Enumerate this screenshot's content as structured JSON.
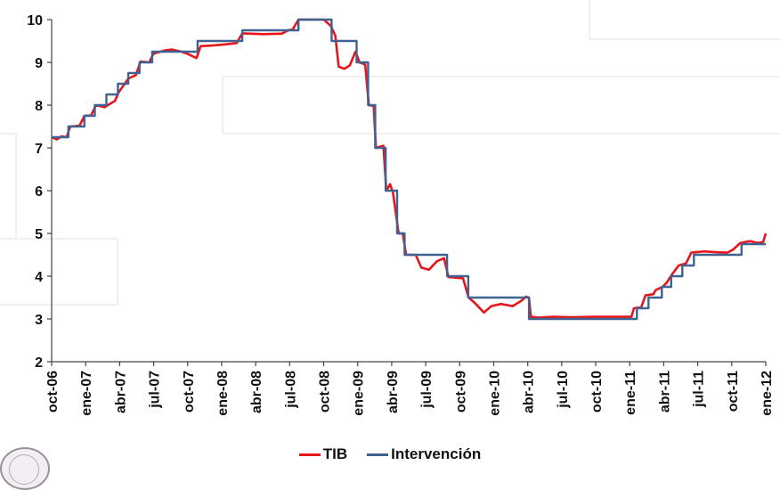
{
  "chart_data": {
    "type": "line",
    "title": "",
    "xlabel": "",
    "ylabel": "",
    "ylim": [
      2,
      10
    ],
    "yticks": [
      "2",
      "3",
      "4",
      "5",
      "6",
      "7",
      "8",
      "9",
      "10"
    ],
    "x_range": [
      "2006-10-01",
      "2012-01-01"
    ],
    "xticks": [
      "oct-06",
      "ene-07",
      "abr-07",
      "jul-07",
      "oct-07",
      "ene-08",
      "abr-08",
      "jul-08",
      "oct-08",
      "ene-09",
      "abr-09",
      "jul-09",
      "oct-09",
      "ene-10",
      "abr-10",
      "jul-10",
      "oct-10",
      "ene-11",
      "abr-11",
      "jul-11",
      "oct-11",
      "ene-12"
    ],
    "grid": false,
    "legend_position": "bottom",
    "series": [
      {
        "name": "TIB",
        "color": "#e8141b",
        "points": [
          [
            "2006-10-01",
            7.25
          ],
          [
            "2006-10-15",
            7.2
          ],
          [
            "2006-10-28",
            7.27
          ],
          [
            "2006-11-10",
            7.25
          ],
          [
            "2006-11-20",
            7.5
          ],
          [
            "2006-12-15",
            7.52
          ],
          [
            "2006-12-28",
            7.75
          ],
          [
            "2007-01-15",
            7.76
          ],
          [
            "2007-01-28",
            8.0
          ],
          [
            "2007-02-20",
            7.95
          ],
          [
            "2007-03-05",
            8.02
          ],
          [
            "2007-03-20",
            8.1
          ],
          [
            "2007-03-30",
            8.3
          ],
          [
            "2007-04-25",
            8.62
          ],
          [
            "2007-05-15",
            8.7
          ],
          [
            "2007-05-28",
            9.02
          ],
          [
            "2007-06-20",
            9.0
          ],
          [
            "2007-07-01",
            9.2
          ],
          [
            "2007-08-01",
            9.28
          ],
          [
            "2007-08-20",
            9.3
          ],
          [
            "2007-09-15",
            9.25
          ],
          [
            "2007-10-01",
            9.2
          ],
          [
            "2007-10-25",
            9.1
          ],
          [
            "2007-11-05",
            9.38
          ],
          [
            "2007-12-15",
            9.4
          ],
          [
            "2008-01-10",
            9.42
          ],
          [
            "2008-02-10",
            9.45
          ],
          [
            "2008-02-25",
            9.68
          ],
          [
            "2008-04-20",
            9.66
          ],
          [
            "2008-06-10",
            9.67
          ],
          [
            "2008-06-28",
            9.75
          ],
          [
            "2008-07-10",
            9.78
          ],
          [
            "2008-07-25",
            10.0
          ],
          [
            "2008-09-05",
            10.0
          ],
          [
            "2008-10-01",
            10.0
          ],
          [
            "2008-10-20",
            9.85
          ],
          [
            "2008-11-01",
            9.62
          ],
          [
            "2008-11-10",
            8.9
          ],
          [
            "2008-11-25",
            8.85
          ],
          [
            "2008-12-10",
            8.93
          ],
          [
            "2008-12-25",
            9.25
          ],
          [
            "2009-01-05",
            9.0
          ],
          [
            "2009-01-20",
            8.95
          ],
          [
            "2009-01-30",
            8.0
          ],
          [
            "2009-02-12",
            7.98
          ],
          [
            "2009-02-18",
            7.0
          ],
          [
            "2009-03-10",
            7.05
          ],
          [
            "2009-03-18",
            6.0
          ],
          [
            "2009-03-28",
            6.15
          ],
          [
            "2009-04-05",
            5.95
          ],
          [
            "2009-04-20",
            5.0
          ],
          [
            "2009-05-01",
            5.0
          ],
          [
            "2009-05-10",
            4.5
          ],
          [
            "2009-06-05",
            4.5
          ],
          [
            "2009-06-20",
            4.2
          ],
          [
            "2009-07-10",
            4.15
          ],
          [
            "2009-08-01",
            4.35
          ],
          [
            "2009-08-20",
            4.42
          ],
          [
            "2009-09-01",
            3.98
          ],
          [
            "2009-10-10",
            3.95
          ],
          [
            "2009-10-25",
            3.5
          ],
          [
            "2009-11-10",
            3.38
          ],
          [
            "2009-12-05",
            3.15
          ],
          [
            "2009-12-25",
            3.3
          ],
          [
            "2010-01-20",
            3.35
          ],
          [
            "2010-02-20",
            3.3
          ],
          [
            "2010-03-15",
            3.42
          ],
          [
            "2010-03-28",
            3.52
          ],
          [
            "2010-04-05",
            3.5
          ],
          [
            "2010-04-10",
            3.05
          ],
          [
            "2010-05-01",
            3.03
          ],
          [
            "2010-06-10",
            3.05
          ],
          [
            "2010-08-01",
            3.04
          ],
          [
            "2010-10-01",
            3.05
          ],
          [
            "2010-12-01",
            3.05
          ],
          [
            "2011-01-05",
            3.05
          ],
          [
            "2011-01-12",
            3.25
          ],
          [
            "2011-02-01",
            3.28
          ],
          [
            "2011-02-12",
            3.55
          ],
          [
            "2011-03-05",
            3.58
          ],
          [
            "2011-03-12",
            3.68
          ],
          [
            "2011-03-30",
            3.75
          ],
          [
            "2011-04-10",
            3.85
          ],
          [
            "2011-04-25",
            4.05
          ],
          [
            "2011-05-12",
            4.25
          ],
          [
            "2011-06-01",
            4.3
          ],
          [
            "2011-06-15",
            4.55
          ],
          [
            "2011-07-20",
            4.58
          ],
          [
            "2011-08-20",
            4.56
          ],
          [
            "2011-09-20",
            4.55
          ],
          [
            "2011-10-05",
            4.62
          ],
          [
            "2011-10-25",
            4.78
          ],
          [
            "2011-11-20",
            4.82
          ],
          [
            "2011-12-10",
            4.78
          ],
          [
            "2011-12-25",
            4.8
          ],
          [
            "2012-01-01",
            5.0
          ]
        ]
      },
      {
        "name": "Intervención",
        "color": "#3e6392",
        "points": [
          [
            "2006-10-01",
            7.25
          ],
          [
            "2006-11-15",
            7.25
          ],
          [
            "2006-11-15",
            7.5
          ],
          [
            "2006-12-28",
            7.5
          ],
          [
            "2006-12-28",
            7.75
          ],
          [
            "2007-01-25",
            7.75
          ],
          [
            "2007-01-25",
            8.0
          ],
          [
            "2007-02-25",
            8.0
          ],
          [
            "2007-02-25",
            8.25
          ],
          [
            "2007-03-28",
            8.25
          ],
          [
            "2007-03-28",
            8.5
          ],
          [
            "2007-04-25",
            8.5
          ],
          [
            "2007-04-25",
            8.75
          ],
          [
            "2007-05-25",
            8.75
          ],
          [
            "2007-05-25",
            9.0
          ],
          [
            "2007-06-28",
            9.0
          ],
          [
            "2007-06-28",
            9.25
          ],
          [
            "2007-10-28",
            9.25
          ],
          [
            "2007-10-28",
            9.5
          ],
          [
            "2008-02-25",
            9.5
          ],
          [
            "2008-02-25",
            9.75
          ],
          [
            "2008-07-25",
            9.75
          ],
          [
            "2008-07-25",
            10.0
          ],
          [
            "2008-10-22",
            10.0
          ],
          [
            "2008-10-22",
            9.5
          ],
          [
            "2008-12-28",
            9.5
          ],
          [
            "2008-12-28",
            9.0
          ],
          [
            "2009-01-28",
            9.0
          ],
          [
            "2009-01-28",
            8.0
          ],
          [
            "2009-02-16",
            8.0
          ],
          [
            "2009-02-16",
            7.0
          ],
          [
            "2009-03-16",
            7.0
          ],
          [
            "2009-03-16",
            6.0
          ],
          [
            "2009-04-16",
            6.0
          ],
          [
            "2009-04-16",
            5.0
          ],
          [
            "2009-05-06",
            5.0
          ],
          [
            "2009-05-06",
            4.5
          ],
          [
            "2009-08-28",
            4.5
          ],
          [
            "2009-08-28",
            4.0
          ],
          [
            "2009-10-24",
            4.0
          ],
          [
            "2009-10-24",
            3.5
          ],
          [
            "2010-04-05",
            3.5
          ],
          [
            "2010-04-05",
            3.0
          ],
          [
            "2011-01-20",
            3.0
          ],
          [
            "2011-01-20",
            3.25
          ],
          [
            "2011-02-20",
            3.25
          ],
          [
            "2011-02-20",
            3.5
          ],
          [
            "2011-03-28",
            3.5
          ],
          [
            "2011-03-28",
            3.75
          ],
          [
            "2011-04-22",
            3.75
          ],
          [
            "2011-04-22",
            4.0
          ],
          [
            "2011-05-22",
            4.0
          ],
          [
            "2011-05-22",
            4.25
          ],
          [
            "2011-06-22",
            4.25
          ],
          [
            "2011-06-22",
            4.5
          ],
          [
            "2011-10-28",
            4.5
          ],
          [
            "2011-10-28",
            4.75
          ],
          [
            "2012-01-01",
            4.75
          ]
        ]
      }
    ]
  }
}
